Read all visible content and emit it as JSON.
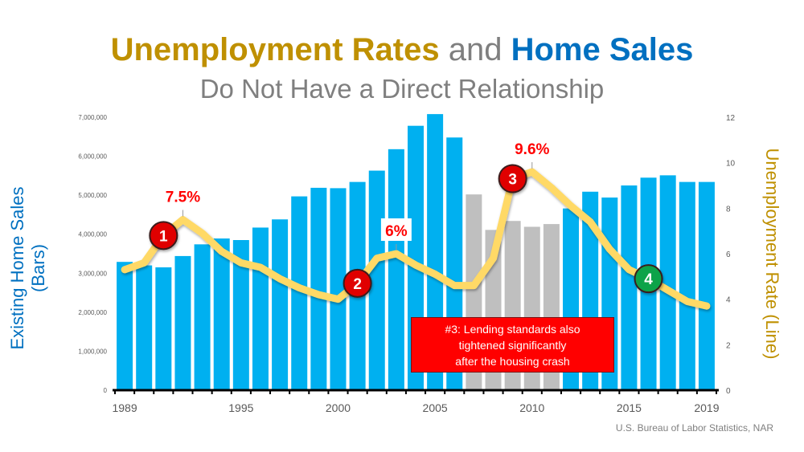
{
  "title": {
    "part1": "Unemployment Rates",
    "part2": "and",
    "part3": "Home Sales"
  },
  "subtitle": "Do Not Have a Direct Relationship",
  "source": "U.S. Bureau of Labor Statistics, NAR",
  "callout": {
    "lines": [
      "#3: Lending standards also",
      "tightened significantly",
      "after the housing crash"
    ]
  },
  "colors": {
    "bar": "#00B0F0",
    "bar_highlight": "#BFBFBF",
    "line": "#FFD966",
    "marker_red": "#E00000",
    "marker_green": "#0FA34A",
    "title_gold": "#BF9000",
    "title_blue": "#0070C0"
  },
  "chart_data": {
    "type": "bar+line",
    "categories": [
      1989,
      1990,
      1991,
      1992,
      1993,
      1994,
      1995,
      1996,
      1997,
      1998,
      1999,
      2000,
      2001,
      2002,
      2003,
      2004,
      2005,
      2006,
      2007,
      2008,
      2009,
      2010,
      2011,
      2012,
      2013,
      2014,
      2015,
      2016,
      2017,
      2018,
      2019
    ],
    "x_tick_labels": [
      "1989",
      "1995",
      "2000",
      "2005",
      "2010",
      "2015",
      "2019"
    ],
    "series": [
      {
        "name": "Existing Home Sales (Bars)",
        "type": "bar",
        "axis": "left",
        "values": [
          3290000,
          3200000,
          3150000,
          3440000,
          3740000,
          3890000,
          3850000,
          4170000,
          4380000,
          4970000,
          5190000,
          5180000,
          5340000,
          5630000,
          6180000,
          6780000,
          7080000,
          6480000,
          5020000,
          4110000,
          4340000,
          4190000,
          4260000,
          4660000,
          5090000,
          4940000,
          5250000,
          5450000,
          5510000,
          5340000,
          5340000
        ],
        "highlighted_categories": [
          2007,
          2008,
          2009,
          2010,
          2011
        ]
      },
      {
        "name": "Unemployment Rate (Line)",
        "type": "line",
        "axis": "right",
        "values": [
          5.3,
          5.6,
          6.8,
          7.5,
          6.9,
          6.1,
          5.6,
          5.4,
          4.9,
          4.5,
          4.2,
          4.0,
          4.7,
          5.8,
          6.0,
          5.5,
          5.1,
          4.6,
          4.6,
          5.8,
          9.3,
          9.6,
          8.9,
          8.1,
          7.4,
          6.2,
          5.3,
          4.9,
          4.4,
          3.9,
          3.7
        ]
      }
    ],
    "ylabel_left": "Existing Home Sales (Bars)",
    "ylabel_right": "Unemployment Rate (Line)",
    "ylim_left": [
      0,
      7000000
    ],
    "yticks_left": [
      "0",
      "1,000,000",
      "2,000,000",
      "3,000,000",
      "4,000,000",
      "5,000,000",
      "6,000,000",
      "7,000,000"
    ],
    "ylim_right": [
      0,
      12
    ],
    "yticks_right": [
      "0",
      "2",
      "4",
      "6",
      "8",
      "10",
      "12"
    ],
    "annotations": [
      {
        "text": "7.5%",
        "year": 1992
      },
      {
        "text": "6%",
        "year": 2003
      },
      {
        "text": "9.6%",
        "year": 2010
      }
    ],
    "markers": [
      {
        "label": "1",
        "year": 1991,
        "color": "red"
      },
      {
        "label": "2",
        "year": 2001,
        "color": "red"
      },
      {
        "label": "3",
        "year": 2009,
        "color": "red"
      },
      {
        "label": "4",
        "year": 2016,
        "color": "green"
      }
    ],
    "grid": false
  }
}
